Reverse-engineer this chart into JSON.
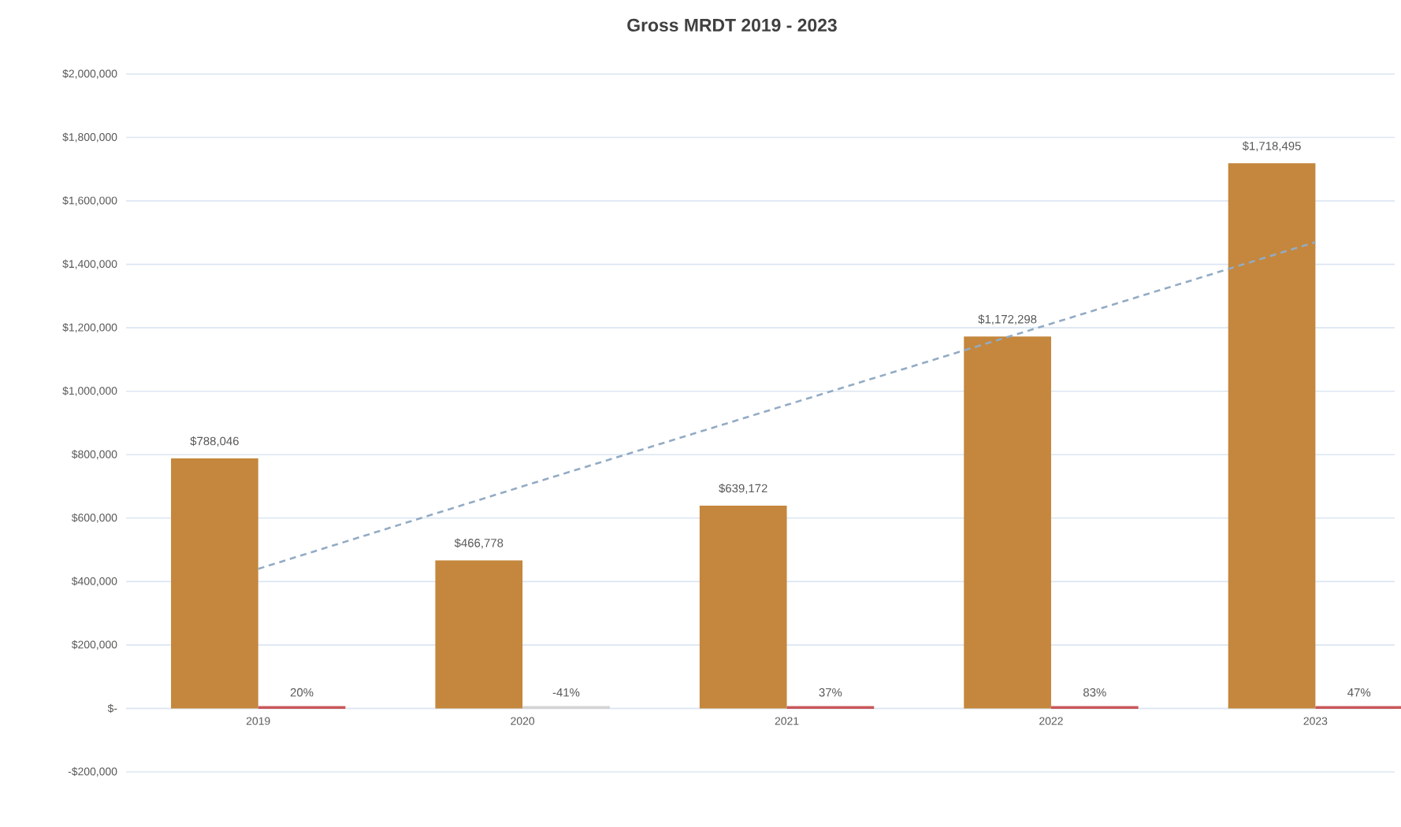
{
  "chart_data": {
    "type": "bar",
    "title": "Gross MRDT 2019 - 2023",
    "categories": [
      "2019",
      "2020",
      "2021",
      "2022",
      "2023"
    ],
    "series": [
      {
        "color": "#c4873d",
        "values": [
          788046,
          466778,
          639172,
          1172298,
          1718495
        ],
        "value_labels": [
          "$788,046",
          "$466,778",
          "$639,172",
          "$1,172,298",
          "$1,718,495"
        ]
      },
      {
        "colors": [
          "#c9585a",
          "#d4d4d4",
          "#c9585a",
          "#c9585a",
          "#c9585a"
        ],
        "values": [
          0,
          0,
          0,
          0,
          0
        ]
      },
      {
        "type": "line",
        "color": "#93abc4",
        "line_style": "dashed",
        "marker": "none",
        "values": [
          440000,
          700000,
          957000,
          1213000,
          1470000
        ]
      }
    ],
    "ylim": [
      -200000,
      2000000
    ],
    "yticks": [
      {
        "value": -200000,
        "label": "-$200,000"
      },
      {
        "value": 0,
        "label": "$-"
      },
      {
        "value": 200000,
        "label": "$200,000"
      },
      {
        "value": 400000,
        "label": "$400,000"
      },
      {
        "value": 600000,
        "label": "$600,000"
      },
      {
        "value": 800000,
        "label": "$800,000"
      },
      {
        "value": 1000000,
        "label": "$1,000,000"
      },
      {
        "value": 1200000,
        "label": "$1,200,000"
      },
      {
        "value": 1400000,
        "label": "$1,400,000"
      },
      {
        "value": 1600000,
        "label": "$1,600,000"
      },
      {
        "value": 1800000,
        "label": "$1,800,000"
      },
      {
        "value": 2000000,
        "label": "$2,000,000"
      }
    ],
    "annotations": [
      {
        "text": "20%",
        "x": "2019",
        "y": 0
      },
      {
        "text": "-41%",
        "x": "2020",
        "y": 0
      },
      {
        "text": "37%",
        "x": "2021",
        "y": 0
      },
      {
        "text": "83%",
        "x": "2022",
        "y": 0
      },
      {
        "text": "47%",
        "x": "2023",
        "y": 0
      }
    ],
    "grid": "y",
    "legend": false
  }
}
